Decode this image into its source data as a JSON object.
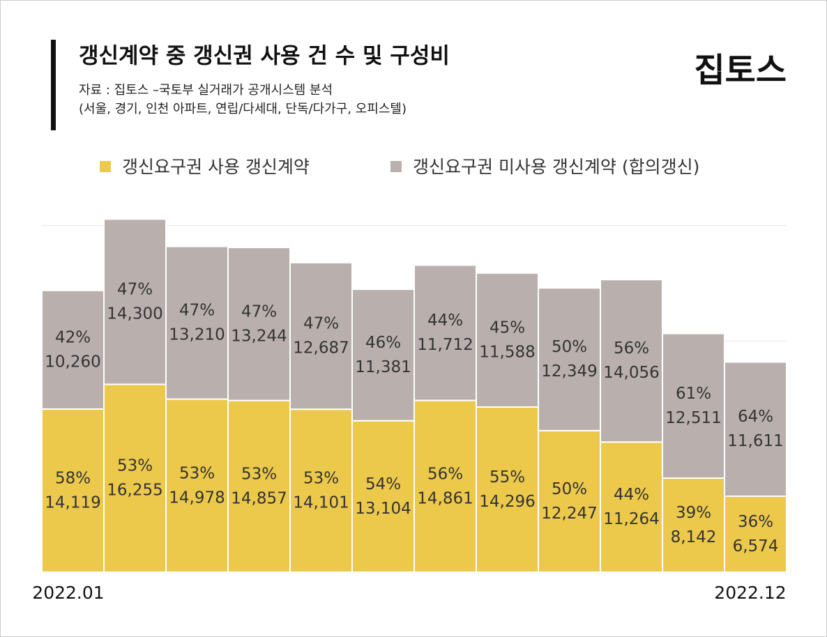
{
  "chart_data": {
    "type": "stacked-bar",
    "title": "갱신계약 중 갱신권 사용 건 수 및 구성비",
    "subtitle": [
      "자료 : 집토스 –국토부 실거래가 공개시스템 분석",
      "(서울, 경기, 인천 아파트, 연립/다세대, 단독/다가구, 오피스텔)"
    ],
    "logo": "집토스",
    "categories": [
      "2022.01",
      null,
      null,
      null,
      null,
      null,
      null,
      null,
      null,
      null,
      null,
      "2022.12"
    ],
    "series": [
      {
        "name": "갱신요구권 사용 갱신계약",
        "color": "#ecc94b",
        "values": [
          14119,
          16255,
          14978,
          14857,
          14101,
          13104,
          14861,
          14296,
          12247,
          11264,
          8142,
          6574
        ],
        "value_labels": [
          "14,119",
          "16,255",
          "14,978",
          "14,857",
          "14,101",
          "13,104",
          "14,861",
          "14,296",
          "12,247",
          "11,264",
          "8,142",
          "6,574"
        ],
        "share_labels": [
          "58%",
          "53%",
          "53%",
          "53%",
          "53%",
          "54%",
          "56%",
          "55%",
          "50%",
          "44%",
          "39%",
          "36%"
        ]
      },
      {
        "name": "갱신요구권 미사용 갱신계약 (합의갱신)",
        "color": "#b9b0ad",
        "values": [
          10260,
          14300,
          13210,
          13244,
          12687,
          11381,
          11712,
          11588,
          12349,
          14056,
          12511,
          11611
        ],
        "value_labels": [
          "10,260",
          "14,300",
          "13,210",
          "13,244",
          "12,687",
          "11,381",
          "11,712",
          "11,588",
          "12,349",
          "14,056",
          "12,511",
          "11,611"
        ],
        "share_labels": [
          "42%",
          "47%",
          "47%",
          "47%",
          "47%",
          "46%",
          "44%",
          "45%",
          "50%",
          "56%",
          "61%",
          "64%"
        ]
      }
    ],
    "ylim": [
      0,
      31000
    ],
    "yticks": [
      10000,
      20000,
      30000
    ],
    "grid": true
  }
}
